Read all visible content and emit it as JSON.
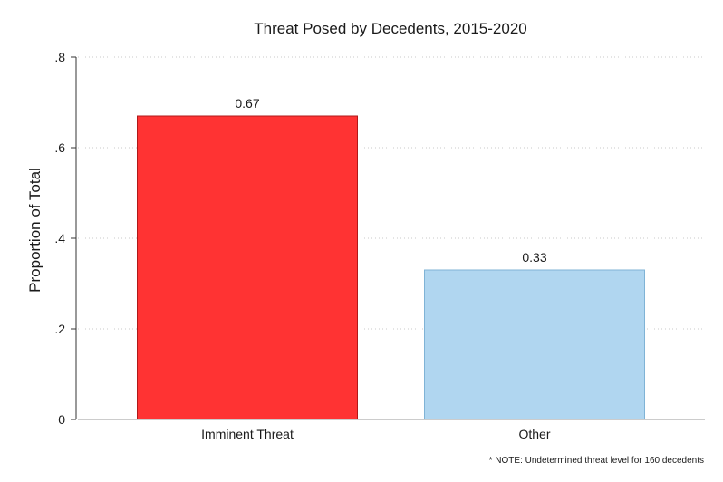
{
  "chart_data": {
    "type": "bar",
    "title": "Threat Posed by Decedents, 2015-2020",
    "xlabel": "",
    "ylabel": "Proportion of Total",
    "categories": [
      "Imminent Threat",
      "Other"
    ],
    "values": [
      0.67,
      0.33
    ],
    "value_labels": [
      "0.67",
      "0.33"
    ],
    "ylim": [
      0,
      0.8
    ],
    "yticks": [
      0,
      0.2,
      0.4,
      0.6,
      0.8
    ],
    "ytick_labels": [
      "0",
      ".2",
      ".4",
      ".6",
      ".8"
    ],
    "grid": "horizontal dotted",
    "legend": "none",
    "colors": {
      "bar_fills": [
        "#ff3333",
        "#b0d6f0"
      ],
      "bar_strokes": [
        "#b01818",
        "#7fb3d6"
      ],
      "grid": "#c8c8c8",
      "axis": "#333333"
    },
    "note": "* NOTE: Undetermined threat level for 160 decedents"
  }
}
